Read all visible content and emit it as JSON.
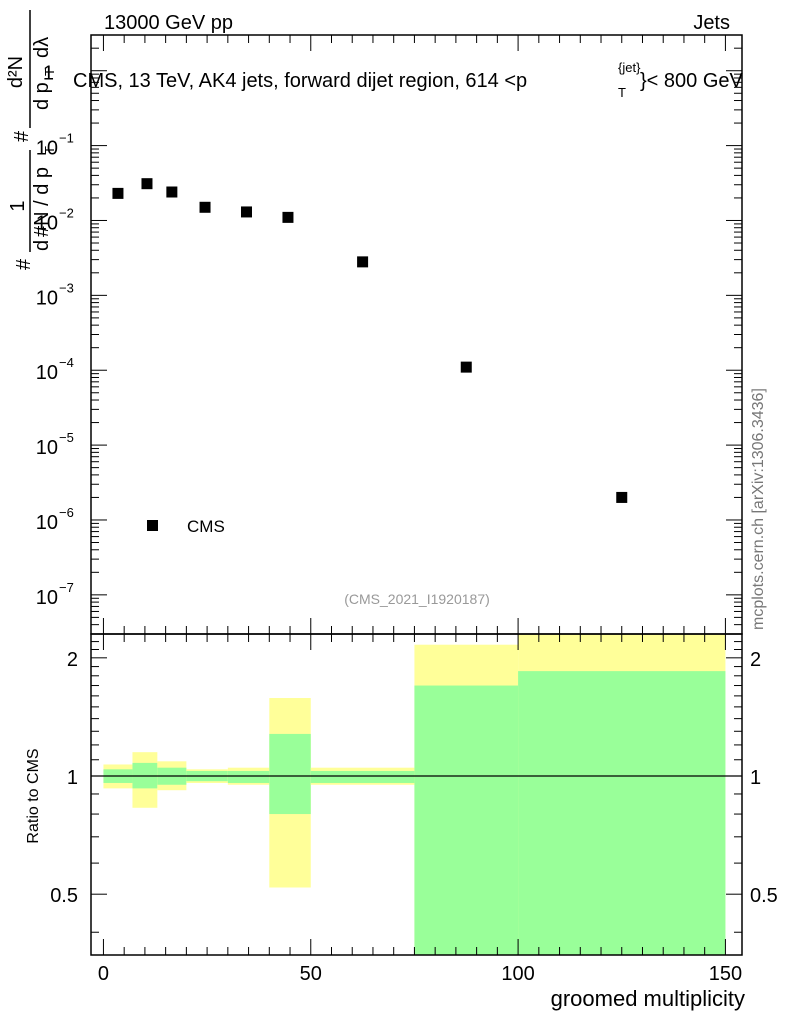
{
  "header": {
    "energy_label": "13000 GeV pp",
    "process_label": "Jets",
    "side_label": "mcplots.cern.ch [arXiv:1306.3436]"
  },
  "chart_data": {
    "type": "scatter",
    "title": "CMS, 13 TeV, AK4 jets, forward dijet region, 614 <p_T^{jet}< 800 GeV",
    "title_parts": {
      "prefix": "CMS, 13 TeV, AK4 jets, forward dijet region, 614 <p",
      "sub": "T",
      "sup": "{jet}",
      "suffix": "}< 800 GeV"
    },
    "ylabel": {
      "frac_num": "1",
      "frac_den": "#N / d p",
      "frac_den_sub": "T",
      "rhs_num": "d²N",
      "rhs_den": "d p",
      "rhs_den_sub": "T",
      "rhs_den_tail": "dλ",
      "prefix_hash": "#",
      "prefix_d": "d"
    },
    "xlabel": "groomed multiplicity",
    "ratio_ylabel": "Ratio to CMS",
    "watermark": "(CMS_2021_I1920187)",
    "xlim": [
      -3,
      154
    ],
    "ylim": [
      3e-08,
      3.0
    ],
    "yscale": "log",
    "main_y_ticks": [
      {
        "value": 1e-07,
        "base": "10",
        "exp": "−7"
      },
      {
        "value": 1e-06,
        "base": "10",
        "exp": "−6"
      },
      {
        "value": 1e-05,
        "base": "10",
        "exp": "−5"
      },
      {
        "value": 0.0001,
        "base": "10",
        "exp": "−4"
      },
      {
        "value": 0.001,
        "base": "10",
        "exp": "−3"
      },
      {
        "value": 0.01,
        "base": "10",
        "exp": "−2"
      },
      {
        "value": 0.1,
        "base": "10",
        "exp": "−1"
      },
      {
        "value": 1,
        "base": "1",
        "exp": ""
      }
    ],
    "x_ticks": [
      {
        "value": 0,
        "label": "0"
      },
      {
        "value": 50,
        "label": "50"
      },
      {
        "value": 100,
        "label": "100"
      },
      {
        "value": 150,
        "label": "150"
      }
    ],
    "series": [
      {
        "name": "CMS",
        "marker": "square",
        "color": "#000000",
        "x": [
          3.5,
          10.5,
          16.5,
          24.5,
          34.5,
          44.5,
          62.5,
          87.5,
          125
        ],
        "y": [
          0.023,
          0.031,
          0.024,
          0.015,
          0.013,
          0.011,
          0.0028,
          0.00011,
          2e-06
        ]
      }
    ],
    "legend": {
      "position": "bottom-left",
      "entries": [
        "CMS"
      ]
    },
    "ratio": {
      "ylim": [
        0.35,
        2.3
      ],
      "yscale": "log",
      "reference": 1.0,
      "y_ticks": [
        {
          "value": 0.5,
          "label": "0.5"
        },
        {
          "value": 1,
          "label": "1"
        },
        {
          "value": 2,
          "label": "2"
        }
      ],
      "bins": [
        {
          "x0": 0,
          "x1": 7,
          "stat": [
            0.96,
            1.04
          ],
          "total": [
            0.93,
            1.07
          ]
        },
        {
          "x0": 7,
          "x1": 13,
          "stat": [
            0.93,
            1.08
          ],
          "total": [
            0.83,
            1.15
          ]
        },
        {
          "x0": 13,
          "x1": 20,
          "stat": [
            0.95,
            1.05
          ],
          "total": [
            0.92,
            1.09
          ]
        },
        {
          "x0": 20,
          "x1": 30,
          "stat": [
            0.97,
            1.03
          ],
          "total": [
            0.96,
            1.04
          ]
        },
        {
          "x0": 30,
          "x1": 40,
          "stat": [
            0.96,
            1.03
          ],
          "total": [
            0.95,
            1.05
          ]
        },
        {
          "x0": 40,
          "x1": 50,
          "stat": [
            0.8,
            1.28
          ],
          "total": [
            0.52,
            1.58
          ]
        },
        {
          "x0": 50,
          "x1": 75,
          "stat": [
            0.96,
            1.03
          ],
          "total": [
            0.95,
            1.05
          ]
        },
        {
          "x0": 75,
          "x1": 100,
          "stat": [
            0.2,
            1.7
          ],
          "total": [
            0.2,
            2.16
          ]
        },
        {
          "x0": 100,
          "x1": 150,
          "stat": [
            0.2,
            1.85
          ],
          "total": [
            0.2,
            2.4
          ]
        }
      ],
      "colors": {
        "stat": "#99ff99",
        "total": "#ffff99",
        "line": "#000000"
      }
    }
  }
}
